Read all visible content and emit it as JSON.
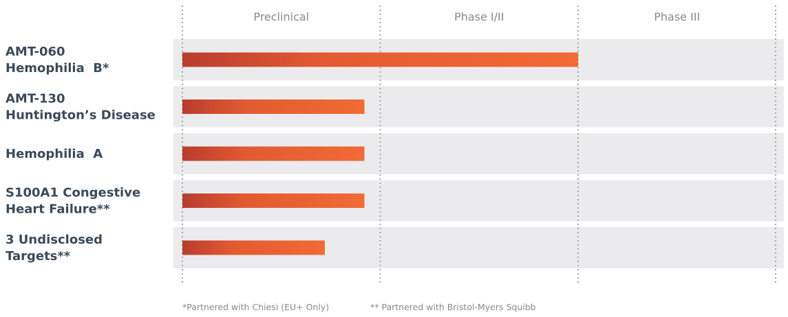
{
  "chart_data": {
    "type": "bar",
    "orientation": "horizontal",
    "x_categories": [
      "Preclinical",
      "Phase I/II",
      "Phase III"
    ],
    "xlim": [
      0,
      3
    ],
    "grid": true,
    "rows": [
      {
        "label_lines": [
          "AMT-060",
          "Hemophilia  B*"
        ],
        "value": 2.0
      },
      {
        "label_lines": [
          "AMT-130",
          "Huntington’s Disease"
        ],
        "value": 0.92
      },
      {
        "label_lines": [
          "Hemophilia  A"
        ],
        "value": 0.92
      },
      {
        "label_lines": [
          "S100A1 Congestive",
          "Heart Failure**"
        ],
        "value": 0.92
      },
      {
        "label_lines": [
          "3 Undisclosed",
          "Targets**"
        ],
        "value": 0.72
      }
    ],
    "footnotes": [
      "*Partnered with Chiesi (EU+ Only)",
      "** Partnered with Bristol-Myers Squibb"
    ],
    "colors": {
      "bar_start": "#b83d2e",
      "bar_mid": "#e35a32",
      "bar_end": "#f26a34",
      "row_background": "#ebebed",
      "grid": "#a5a5a5"
    }
  }
}
